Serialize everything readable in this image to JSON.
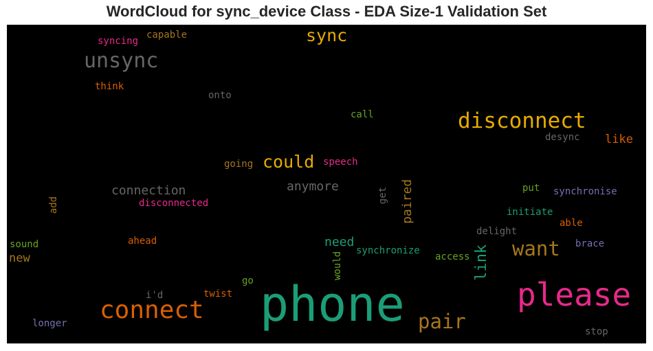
{
  "chart_data": {
    "type": "wordcloud",
    "title": "WordCloud for sync_device Class - EDA Size-1 Validation Set",
    "words": [
      {
        "text": "phone",
        "color": "#1b9e77"
      },
      {
        "text": "please",
        "color": "#e7298a"
      },
      {
        "text": "connect",
        "color": "#d95f02"
      },
      {
        "text": "disconnect",
        "color": "#e6ab02"
      },
      {
        "text": "want",
        "color": "#a6761d"
      },
      {
        "text": "pair",
        "color": "#a6761d"
      },
      {
        "text": "unsync",
        "color": "#666666"
      },
      {
        "text": "sync",
        "color": "#e6ab02"
      },
      {
        "text": "could",
        "color": "#e6ab02"
      },
      {
        "text": "link",
        "color": "#1b9e77"
      },
      {
        "text": "connection",
        "color": "#666666"
      },
      {
        "text": "anymore",
        "color": "#666666"
      },
      {
        "text": "paired",
        "color": "#a6761d"
      },
      {
        "text": "need",
        "color": "#1b9e77"
      },
      {
        "text": "like",
        "color": "#d95f02"
      },
      {
        "text": "new",
        "color": "#a6761d"
      },
      {
        "text": "disconnected",
        "color": "#e7298a"
      },
      {
        "text": "speech",
        "color": "#e7298a"
      },
      {
        "text": "going",
        "color": "#a6761d"
      },
      {
        "text": "synchronise",
        "color": "#7570b3"
      },
      {
        "text": "synchronize",
        "color": "#1b9e77"
      },
      {
        "text": "initiate",
        "color": "#1b9e77"
      },
      {
        "text": "delight",
        "color": "#666666"
      },
      {
        "text": "able",
        "color": "#d95f02"
      },
      {
        "text": "brace",
        "color": "#7570b3"
      },
      {
        "text": "access",
        "color": "#66a61e"
      },
      {
        "text": "put",
        "color": "#66a61e"
      },
      {
        "text": "desync",
        "color": "#666666"
      },
      {
        "text": "call",
        "color": "#66a61e"
      },
      {
        "text": "onto",
        "color": "#666666"
      },
      {
        "text": "think",
        "color": "#d95f02"
      },
      {
        "text": "capable",
        "color": "#a6761d"
      },
      {
        "text": "syncing",
        "color": "#e7298a"
      },
      {
        "text": "get",
        "color": "#666666"
      },
      {
        "text": "add",
        "color": "#a6761d"
      },
      {
        "text": "sound",
        "color": "#66a61e"
      },
      {
        "text": "ahead",
        "color": "#d95f02"
      },
      {
        "text": "would",
        "color": "#66a61e"
      },
      {
        "text": "go",
        "color": "#66a61e"
      },
      {
        "text": "i'd",
        "color": "#666666"
      },
      {
        "text": "twist",
        "color": "#d95f02"
      },
      {
        "text": "longer",
        "color": "#7570b3"
      },
      {
        "text": "stop",
        "color": "#666666"
      }
    ]
  }
}
